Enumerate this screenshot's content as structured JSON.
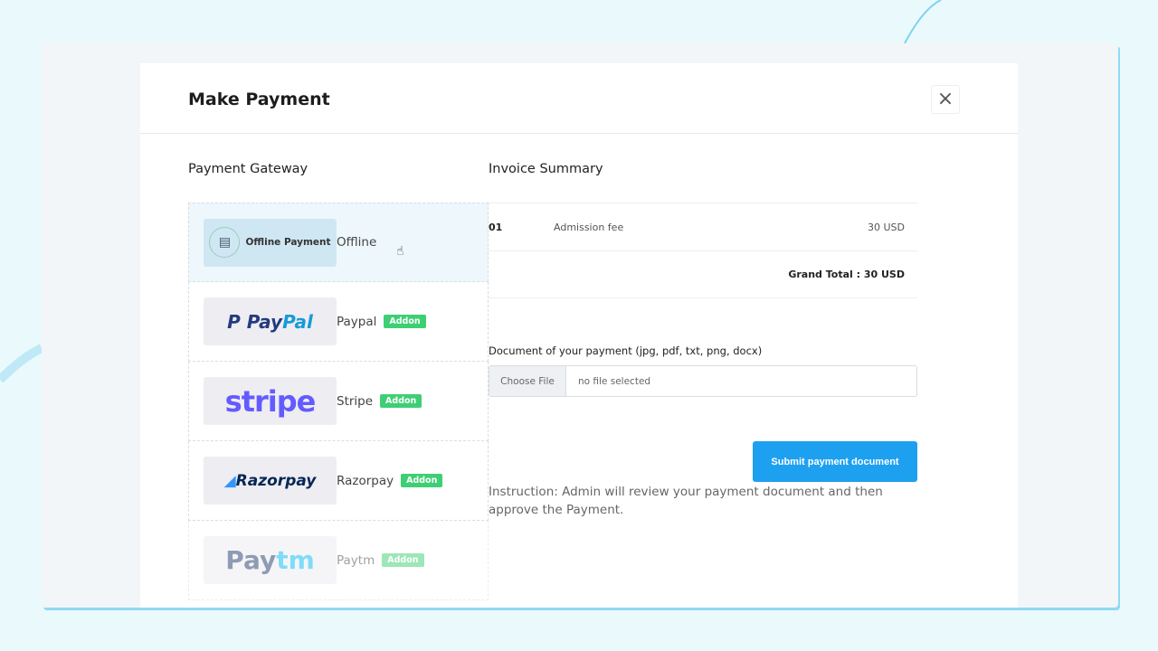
{
  "modal": {
    "title": "Make Payment",
    "close_icon": "close-icon"
  },
  "gateway": {
    "heading": "Payment Gateway",
    "items": [
      {
        "logo": "Offline Payment",
        "label": "Offline",
        "badge": null
      },
      {
        "logo": "PayPal",
        "label": "Paypal",
        "badge": "Addon"
      },
      {
        "logo": "stripe",
        "label": "Stripe",
        "badge": "Addon"
      },
      {
        "logo": "Razorpay",
        "label": "Razorpay",
        "badge": "Addon"
      },
      {
        "logo": "Paytm",
        "label": "Paytm",
        "badge": "Addon"
      }
    ]
  },
  "invoice": {
    "heading": "Invoice Summary",
    "rows": [
      {
        "no": "01",
        "description": "Admission fee",
        "amount": "30 USD"
      }
    ],
    "grand_total": "Grand Total : 30 USD"
  },
  "upload": {
    "label": "Document of your payment (jpg, pdf, txt, png, docx)",
    "choose_button": "Choose File",
    "status": "no file selected",
    "submit": "Submit payment document"
  },
  "instruction": "Instruction: Admin will review your payment document and then approve the Payment.",
  "colors": {
    "primary": "#1ea0f1",
    "addon": "#3ecf74",
    "paypal_dark": "#253b80",
    "paypal_light": "#179bd7",
    "stripe": "#635bff",
    "razorpay": "#072654"
  }
}
